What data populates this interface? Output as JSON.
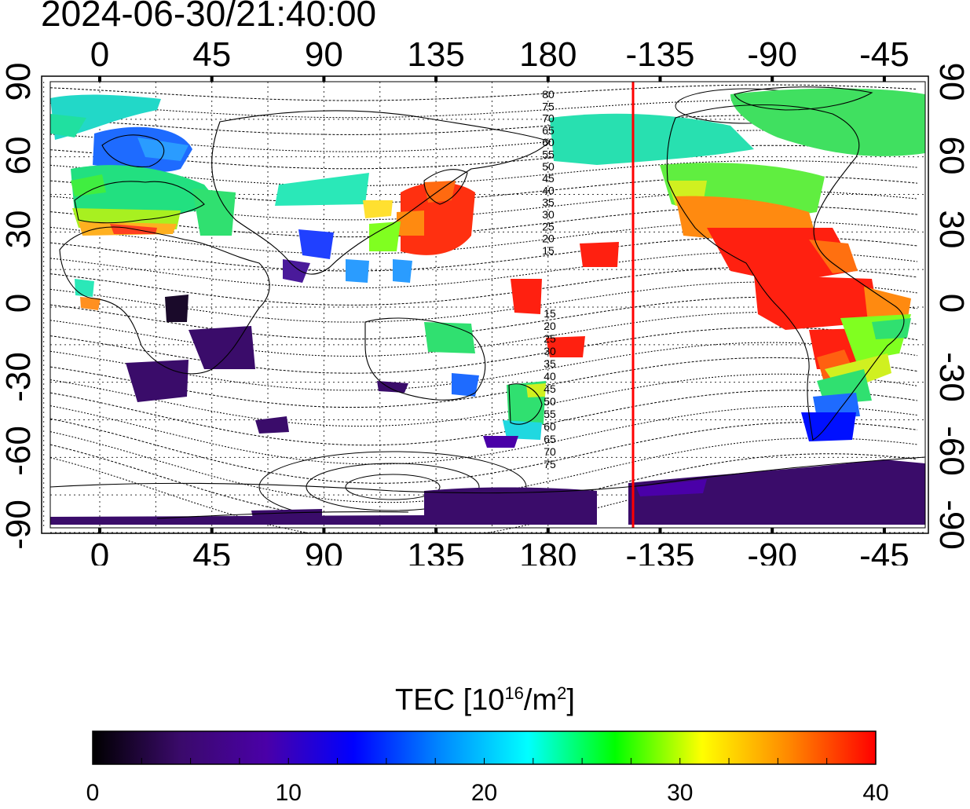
{
  "timestamp": "2024-06-30/21:40:00",
  "map": {
    "top_lon_ticks": [
      "0",
      "45",
      "90",
      "135",
      "180",
      "-135",
      "-90",
      "-45"
    ],
    "bottom_lon_ticks": [
      "0",
      "45",
      "90",
      "135",
      "180",
      "-135",
      "-90",
      "-45"
    ],
    "left_lat_ticks": [
      "90",
      "60",
      "30",
      "0",
      "-30",
      "-60",
      "-90"
    ],
    "right_lat_ticks": [
      "90",
      "60",
      "30",
      "0",
      "-30",
      "-60",
      "-90"
    ],
    "contour_labels_north": [
      "80",
      "75",
      "70",
      "65",
      "60",
      "55",
      "50",
      "45",
      "40",
      "35",
      "30",
      "25",
      "20",
      "15"
    ],
    "contour_labels_south": [
      "15",
      "20",
      "25",
      "30",
      "35",
      "40",
      "45",
      "50",
      "55",
      "60",
      "65",
      "70",
      "75"
    ],
    "terminator_color": "#ff0000"
  },
  "colorbar": {
    "title_main": "TEC  [10",
    "title_exp1": "16",
    "title_mid": "/m",
    "title_exp2": "2",
    "title_end": "]",
    "ticks": [
      "0",
      "10",
      "20",
      "30",
      "40"
    ],
    "min": 0,
    "max": 40,
    "stops": [
      "#000000",
      "#3a0a6a",
      "#4a00a8",
      "#0000ff",
      "#0088ff",
      "#00ffff",
      "#00ff00",
      "#ffff00",
      "#ff8800",
      "#ff0000"
    ]
  }
}
